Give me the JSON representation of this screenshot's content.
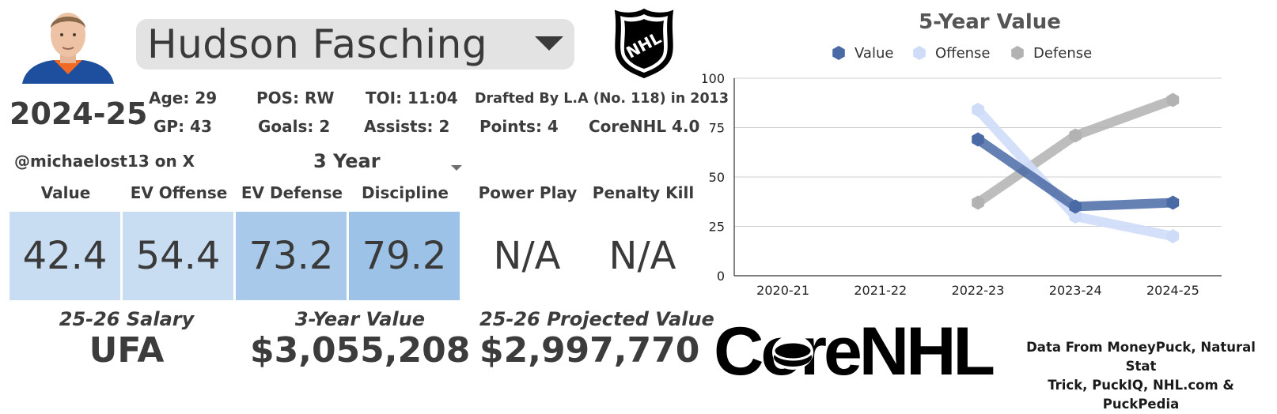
{
  "player": {
    "name": "Hudson Fasching",
    "season": "2024-25"
  },
  "stats": {
    "age": "Age: 29",
    "pos": "POS: RW",
    "toi": "TOI: 11:04",
    "drafted": "Drafted By L.A (No. 118) in 2013",
    "gp": "GP: 43",
    "goals": "Goals: 2",
    "assists": "Assists: 2",
    "points": "Points: 4",
    "version": "CoreNHL 4.0"
  },
  "handle": "@michaelost13 on X",
  "span_selector": {
    "value": "3 Year"
  },
  "ratings": [
    {
      "label": "Value",
      "value": "42.4",
      "color": "#c9ddf2"
    },
    {
      "label": "EV Offense",
      "value": "54.4",
      "color": "#c9ddf2"
    },
    {
      "label": "EV Defense",
      "value": "73.2",
      "color": "#a9c9ea"
    },
    {
      "label": "Discipline",
      "value": "79.2",
      "color": "#9dc2e8"
    },
    {
      "label": "Power Play",
      "value": "N/A",
      "color": "#ffffff"
    },
    {
      "label": "Penalty Kill",
      "value": "N/A",
      "color": "#ffffff"
    }
  ],
  "contract": {
    "salary_label": "25-26 Salary",
    "salary_value": "UFA",
    "three_year_label": "3-Year Value",
    "three_year_value": "$3,055,208",
    "projected_label": "25-26 Projected Value",
    "projected_value": "$2,997,770"
  },
  "brand": {
    "name": "CoreNHL"
  },
  "credits": {
    "line1": "Data From MoneyPuck, Natural Stat",
    "line2": "Trick, PuckIQ, NHL.com & PuckPedia"
  },
  "chart_data": {
    "type": "line",
    "title": "5-Year Value",
    "categories": [
      "2020-21",
      "2021-22",
      "2022-23",
      "2023-24",
      "2024-25"
    ],
    "ylim": [
      0,
      100
    ],
    "yticks": [
      0,
      25,
      50,
      75,
      100
    ],
    "legend_position": "top",
    "series": [
      {
        "name": "Value",
        "color": "#4a6aa5",
        "values": [
          null,
          null,
          69,
          35,
          37
        ]
      },
      {
        "name": "Offense",
        "color": "#cfdcf8",
        "values": [
          null,
          null,
          84,
          30,
          20
        ]
      },
      {
        "name": "Defense",
        "color": "#b2b2b2",
        "values": [
          null,
          null,
          37,
          71,
          89
        ]
      }
    ]
  }
}
